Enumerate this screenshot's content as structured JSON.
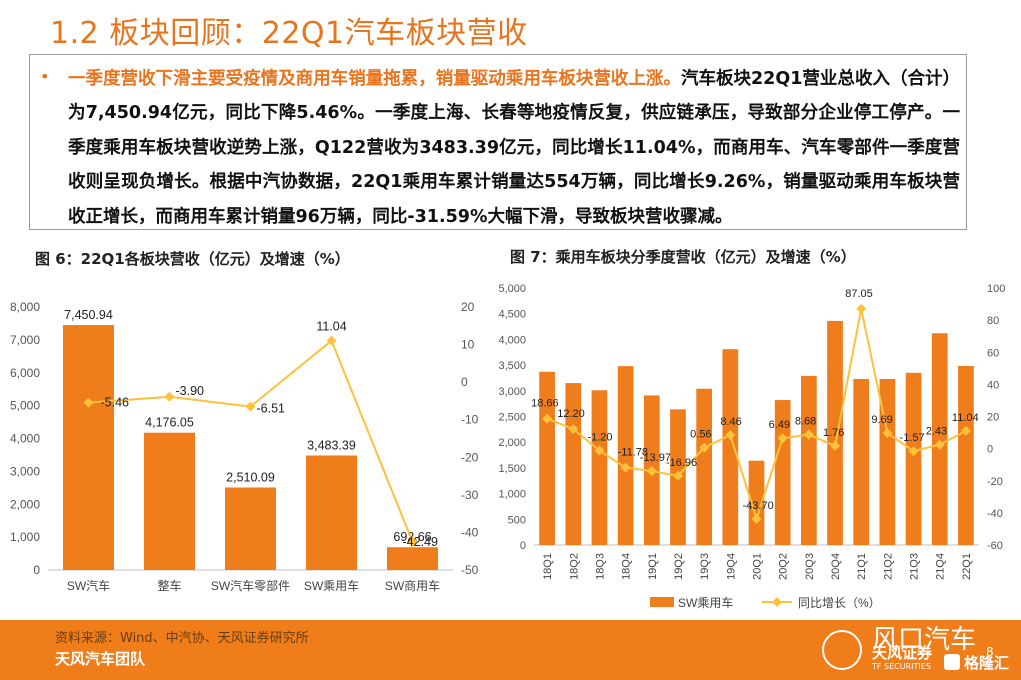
{
  "title": "1.2 板块回顾：22Q1汽车板块营收",
  "summary": {
    "bullet": "•",
    "highlight": "一季度营收下滑主要受疫情及商用车销量拖累，销量驱动乘用车板块营收上涨。",
    "body": "汽车板块22Q1营业总收入（合计）为7,450.94亿元，同比下降5.46%。一季度上海、长春等地疫情反复，供应链承压，导致部分企业停工停产。一季度乘用车板块营收逆势上涨，Q122营收为3483.39亿元，同比增长11.04%，而商用车、汽车零部件一季度营收则呈现负增长。根据中汽协数据，22Q1乘用车累计销量达554万辆，同比增长9.26%，销量驱动乘用车板块营收正增长，而商用车累计销量96万辆，同比-31.59%大幅下滑，导致板块营收骤减。"
  },
  "fig6_caption": "图 6：22Q1各板块营收（亿元）及增速（%）",
  "fig7_caption": "图 7：乘用车板块分季度营收（亿元）及增速（%）",
  "colors": {
    "bar": "#f07d1c",
    "line": "#fdc13a",
    "accent": "#e8741e",
    "axis": "#bfbfbf"
  },
  "chart_data": [
    {
      "type": "bar",
      "categories": [
        "SW汽车",
        "整车",
        "SW汽车零部件",
        "SW乘用车",
        "SW商用车"
      ],
      "series": [
        {
          "values": [
            7450.94,
            4176.05,
            2510.09,
            3483.39,
            692.66
          ],
          "labels": [
            "7,450.94",
            "4,176.05",
            "2,510.09",
            "3,483.39",
            "692.66"
          ]
        },
        {
          "type": "line",
          "axis": "right",
          "values": [
            -5.46,
            -3.9,
            -6.51,
            11.04,
            -42.49
          ],
          "labels": [
            "-5.46",
            "-3.90",
            "-6.51",
            "11.04",
            "-42.49"
          ]
        }
      ],
      "ylim": [
        0,
        8000
      ],
      "y2lim": [
        -50,
        20
      ],
      "yticks": [
        "0",
        "1,000",
        "2,000",
        "3,000",
        "4,000",
        "5,000",
        "6,000",
        "7,000",
        "8,000"
      ],
      "y2ticks": [
        "-50",
        "-40",
        "-30",
        "-20",
        "-10",
        "0",
        "10",
        "20"
      ],
      "legend": "none"
    },
    {
      "type": "bar",
      "categories": [
        "18Q1",
        "18Q2",
        "18Q3",
        "18Q4",
        "19Q1",
        "19Q2",
        "19Q3",
        "19Q4",
        "20Q1",
        "20Q2",
        "20Q3",
        "20Q4",
        "21Q1",
        "21Q2",
        "21Q3",
        "21Q4",
        "22Q1"
      ],
      "series": [
        {
          "name": "SW乘用车",
          "values": [
            3370,
            3150,
            3010,
            3480,
            2910,
            2640,
            3040,
            3810,
            1640,
            2820,
            3290,
            4360,
            3230,
            3230,
            3350,
            4120,
            3483.39
          ]
        },
        {
          "name": "同比增长（%）",
          "type": "line",
          "axis": "right",
          "values": [
            18.66,
            12.2,
            -1.2,
            -11.78,
            -13.97,
            -16.96,
            0.56,
            8.46,
            -43.7,
            6.49,
            8.68,
            1.76,
            87.05,
            9.69,
            -1.57,
            2.43,
            11.04
          ],
          "labels": [
            "18.66",
            "12.20",
            "-1.20",
            "-11.78",
            "-13.97",
            "-16.96",
            "0.56",
            "8.46",
            "-43.70",
            "6.49",
            "8.68",
            "1.76",
            "87.05",
            "9.69",
            "-1.57",
            "2.43",
            "11.04"
          ]
        }
      ],
      "ylim": [
        0,
        5000
      ],
      "y2lim": [
        -60,
        100
      ],
      "yticks": [
        "0",
        "500",
        "1,000",
        "1,500",
        "2,000",
        "2,500",
        "3,000",
        "3,500",
        "4,000",
        "4,500",
        "5,000"
      ],
      "y2ticks": [
        "-60",
        "-40",
        "-20",
        "0",
        "20",
        "40",
        "60",
        "80",
        "100"
      ],
      "legend": "bottom"
    }
  ],
  "footer": {
    "source": "资料来源：Wind、中汽协、天风证券研究所",
    "team": "天风汽车团队",
    "page": "8",
    "wechat": "风口汽车",
    "broker": "天风证券",
    "broker_en": "TF SECURITIES",
    "platform": "格隆汇"
  }
}
